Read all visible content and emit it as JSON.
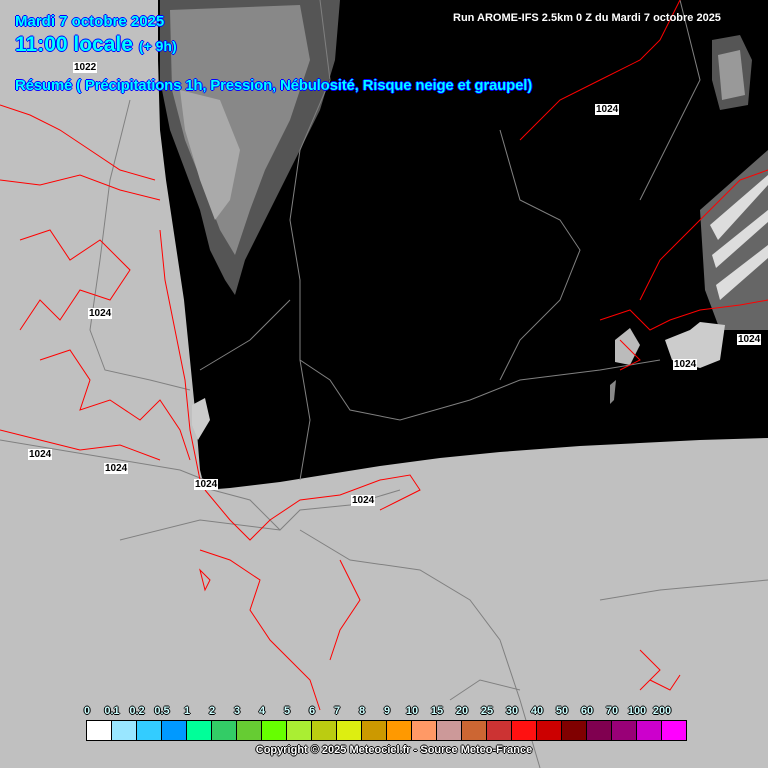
{
  "header": {
    "date": "Mardi 7 octobre 2025",
    "time": "11:00 locale",
    "offset": "(+ 9h)",
    "summary": "Résumé ( Précipitations 1h, Pression, Nébulosité, Risque neige et graupel)",
    "run": "Run AROME-IFS 2.5km 0 Z du Mardi 7 octobre 2025"
  },
  "pressure_labels": [
    "1022",
    "1024",
    "1024",
    "1024",
    "1024",
    "1024",
    "1024",
    "1024",
    "1024"
  ],
  "legend": {
    "labels": [
      "0",
      "0.1",
      "0.2",
      "0.5",
      "1",
      "2",
      "3",
      "4",
      "5",
      "6",
      "7",
      "8",
      "9",
      "10",
      "15",
      "20",
      "25",
      "30",
      "40",
      "50",
      "60",
      "70",
      "100",
      "200"
    ],
    "colors": [
      "#ffffff",
      "#99e6ff",
      "#33ccff",
      "#0099ff",
      "#00ff99",
      "#33cc66",
      "#66cc33",
      "#66ff00",
      "#aaee33",
      "#bbcc11",
      "#ddee11",
      "#cc9900",
      "#ff9900",
      "#ff9966",
      "#cc9999",
      "#cc6633",
      "#cc3333",
      "#ff1111",
      "#cc0000",
      "#800000",
      "#800050",
      "#990077",
      "#cc00cc",
      "#ff00ff"
    ]
  },
  "copyright": "Copyright © 2025 Meteociel.fr - Source Meteo-France",
  "colors": {
    "background": "#c0c0c0",
    "domain": "#000000",
    "coastline": "#ff0000",
    "borders": "#808080",
    "title": "#00ffff"
  }
}
